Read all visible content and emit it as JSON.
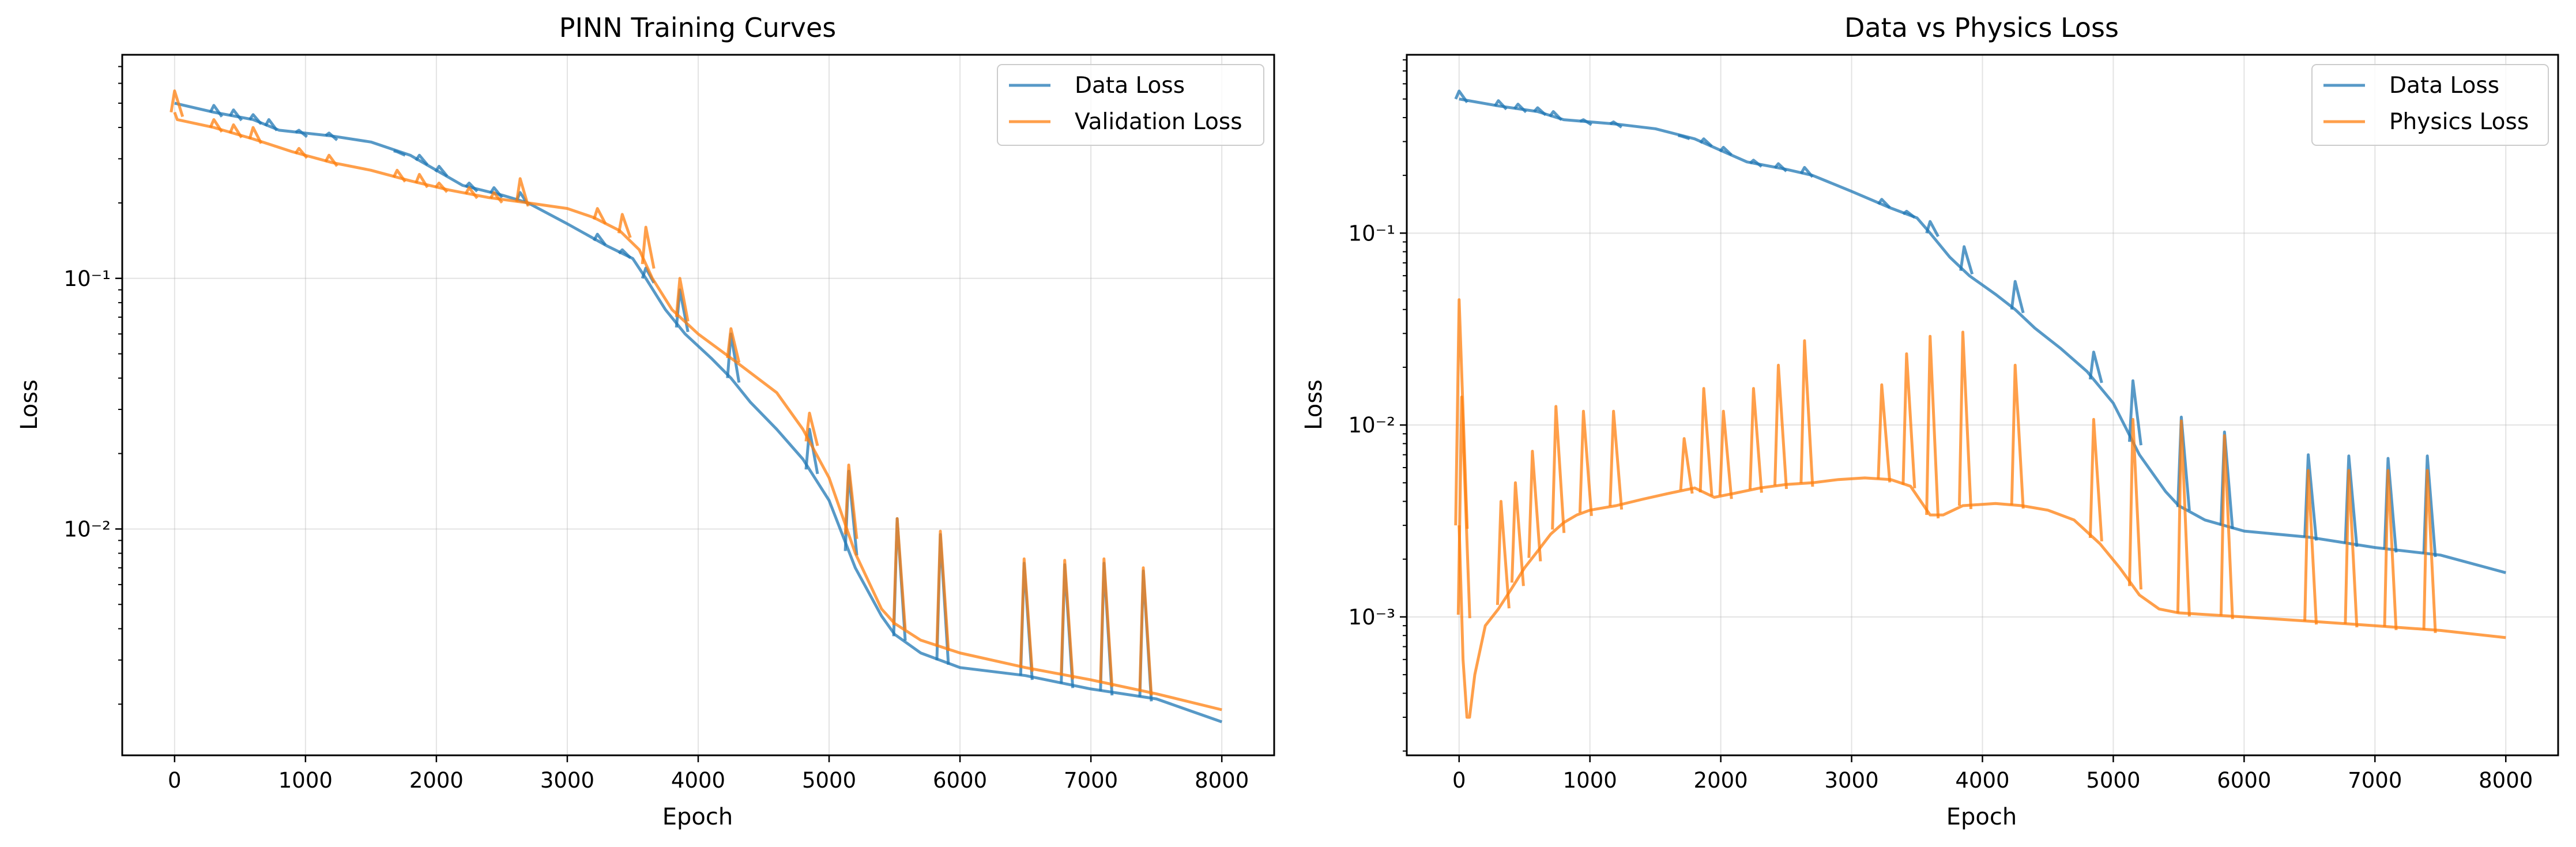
{
  "chart_data": [
    {
      "type": "line",
      "title": "PINN Training Curves",
      "xlabel": "Epoch",
      "ylabel": "Loss",
      "yscale": "log",
      "xlim": [
        -400,
        8400
      ],
      "ylim": [
        0.00125,
        0.78
      ],
      "grid": true,
      "legend_position": "upper-right",
      "x_ticks": [
        0,
        1000,
        2000,
        3000,
        4000,
        5000,
        6000,
        7000,
        8000
      ],
      "x_tick_labels": [
        "0",
        "1000",
        "2000",
        "3000",
        "4000",
        "5000",
        "6000",
        "7000",
        "8000"
      ],
      "y_ticks": [
        0.1,
        0.01
      ],
      "y_tick_labels": [
        "10⁻¹",
        "10⁻²"
      ],
      "series": [
        {
          "name": "Data Loss",
          "color": "#1f77b4",
          "points": [
            [
              0,
              0.5
            ],
            [
              300,
              0.46
            ],
            [
              600,
              0.43
            ],
            [
              800,
              0.39
            ],
            [
              1200,
              0.37
            ],
            [
              1500,
              0.35
            ],
            [
              1800,
              0.31
            ],
            [
              2000,
              0.27
            ],
            [
              2200,
              0.235
            ],
            [
              2500,
              0.215
            ],
            [
              2700,
              0.2
            ],
            [
              3000,
              0.165
            ],
            [
              3300,
              0.135
            ],
            [
              3500,
              0.12
            ],
            [
              3600,
              0.1
            ],
            [
              3750,
              0.075
            ],
            [
              3900,
              0.06
            ],
            [
              4100,
              0.048
            ],
            [
              4250,
              0.04
            ],
            [
              4400,
              0.032
            ],
            [
              4600,
              0.025
            ],
            [
              4800,
              0.019
            ],
            [
              5000,
              0.013
            ],
            [
              5200,
              0.007
            ],
            [
              5400,
              0.0045
            ],
            [
              5500,
              0.0038
            ],
            [
              5700,
              0.0032
            ],
            [
              6000,
              0.0028
            ],
            [
              6500,
              0.0026
            ],
            [
              7000,
              0.0023
            ],
            [
              7500,
              0.0021
            ],
            [
              8000,
              0.0017
            ]
          ],
          "spikes": [
            [
              300,
              0.49
            ],
            [
              450,
              0.47
            ],
            [
              600,
              0.45
            ],
            [
              720,
              0.43
            ],
            [
              950,
              0.39
            ],
            [
              1180,
              0.38
            ],
            [
              1700,
              0.32
            ],
            [
              1870,
              0.31
            ],
            [
              2020,
              0.28
            ],
            [
              2250,
              0.24
            ],
            [
              2440,
              0.23
            ],
            [
              2640,
              0.22
            ],
            [
              3230,
              0.15
            ],
            [
              3420,
              0.13
            ],
            [
              3600,
              0.11
            ],
            [
              3860,
              0.09
            ],
            [
              4250,
              0.06
            ],
            [
              4850,
              0.025
            ],
            [
              5150,
              0.017
            ],
            [
              5520,
              0.011
            ],
            [
              5850,
              0.0095
            ],
            [
              6490,
              0.0073
            ],
            [
              6800,
              0.0072
            ],
            [
              7100,
              0.0073
            ],
            [
              7400,
              0.0068
            ]
          ]
        },
        {
          "name": "Validation Loss",
          "color": "#ff7f0e",
          "points": [
            [
              0,
              0.46
            ],
            [
              20,
              0.43
            ],
            [
              300,
              0.4
            ],
            [
              600,
              0.36
            ],
            [
              900,
              0.32
            ],
            [
              1200,
              0.29
            ],
            [
              1500,
              0.27
            ],
            [
              1800,
              0.245
            ],
            [
              2100,
              0.225
            ],
            [
              2400,
              0.21
            ],
            [
              2700,
              0.2
            ],
            [
              3000,
              0.19
            ],
            [
              3200,
              0.175
            ],
            [
              3400,
              0.155
            ],
            [
              3550,
              0.13
            ],
            [
              3650,
              0.1
            ],
            [
              3800,
              0.075
            ],
            [
              4000,
              0.06
            ],
            [
              4300,
              0.046
            ],
            [
              4600,
              0.035
            ],
            [
              4800,
              0.025
            ],
            [
              5000,
              0.016
            ],
            [
              5200,
              0.008
            ],
            [
              5400,
              0.0048
            ],
            [
              5500,
              0.0042
            ],
            [
              5700,
              0.0036
            ],
            [
              6000,
              0.0032
            ],
            [
              6500,
              0.0028
            ],
            [
              7000,
              0.0025
            ],
            [
              7500,
              0.0022
            ],
            [
              8000,
              0.0019
            ]
          ],
          "spikes": [
            [
              0,
              0.56
            ],
            [
              300,
              0.43
            ],
            [
              450,
              0.41
            ],
            [
              600,
              0.4
            ],
            [
              950,
              0.33
            ],
            [
              1180,
              0.31
            ],
            [
              1700,
              0.27
            ],
            [
              1870,
              0.26
            ],
            [
              2020,
              0.24
            ],
            [
              2250,
              0.23
            ],
            [
              2440,
              0.22
            ],
            [
              2640,
              0.25
            ],
            [
              3230,
              0.19
            ],
            [
              3420,
              0.18
            ],
            [
              3600,
              0.16
            ],
            [
              3860,
              0.1
            ],
            [
              4250,
              0.063
            ],
            [
              4850,
              0.029
            ],
            [
              5150,
              0.018
            ],
            [
              5520,
              0.011
            ],
            [
              5850,
              0.0098
            ],
            [
              6490,
              0.0076
            ],
            [
              6800,
              0.0075
            ],
            [
              7100,
              0.0076
            ],
            [
              7400,
              0.007
            ]
          ]
        }
      ]
    },
    {
      "type": "line",
      "title": "Data vs Physics Loss",
      "xlabel": "Epoch",
      "ylabel": "Loss",
      "yscale": "log",
      "xlim": [
        -400,
        8400
      ],
      "ylim": [
        0.00019,
        0.85
      ],
      "grid": true,
      "legend_position": "upper-right",
      "x_ticks": [
        0,
        1000,
        2000,
        3000,
        4000,
        5000,
        6000,
        7000,
        8000
      ],
      "x_tick_labels": [
        "0",
        "1000",
        "2000",
        "3000",
        "4000",
        "5000",
        "6000",
        "7000",
        "8000"
      ],
      "y_ticks": [
        0.1,
        0.01,
        0.001
      ],
      "y_tick_labels": [
        "10⁻¹",
        "10⁻²",
        "10⁻³"
      ],
      "series": [
        {
          "name": "Data Loss",
          "color": "#1f77b4",
          "points": [
            [
              0,
              0.5
            ],
            [
              300,
              0.46
            ],
            [
              600,
              0.43
            ],
            [
              800,
              0.39
            ],
            [
              1200,
              0.37
            ],
            [
              1500,
              0.35
            ],
            [
              1800,
              0.31
            ],
            [
              2000,
              0.27
            ],
            [
              2200,
              0.235
            ],
            [
              2500,
              0.215
            ],
            [
              2700,
              0.2
            ],
            [
              3000,
              0.165
            ],
            [
              3300,
              0.135
            ],
            [
              3500,
              0.12
            ],
            [
              3600,
              0.1
            ],
            [
              3750,
              0.075
            ],
            [
              3900,
              0.06
            ],
            [
              4100,
              0.048
            ],
            [
              4250,
              0.04
            ],
            [
              4400,
              0.032
            ],
            [
              4600,
              0.025
            ],
            [
              4800,
              0.019
            ],
            [
              5000,
              0.013
            ],
            [
              5200,
              0.007
            ],
            [
              5400,
              0.0045
            ],
            [
              5500,
              0.0038
            ],
            [
              5700,
              0.0032
            ],
            [
              6000,
              0.0028
            ],
            [
              6500,
              0.0026
            ],
            [
              7000,
              0.0023
            ],
            [
              7500,
              0.0021
            ],
            [
              8000,
              0.0017
            ]
          ],
          "spikes": [
            [
              0,
              0.55
            ],
            [
              300,
              0.49
            ],
            [
              450,
              0.47
            ],
            [
              600,
              0.45
            ],
            [
              720,
              0.43
            ],
            [
              950,
              0.39
            ],
            [
              1180,
              0.38
            ],
            [
              1700,
              0.32
            ],
            [
              1870,
              0.31
            ],
            [
              2020,
              0.28
            ],
            [
              2250,
              0.24
            ],
            [
              2440,
              0.23
            ],
            [
              2640,
              0.22
            ],
            [
              3230,
              0.15
            ],
            [
              3420,
              0.13
            ],
            [
              3600,
              0.115
            ],
            [
              3860,
              0.085
            ],
            [
              4250,
              0.056
            ],
            [
              4850,
              0.024
            ],
            [
              5150,
              0.017
            ],
            [
              5520,
              0.011
            ],
            [
              5850,
              0.0092
            ],
            [
              6490,
              0.007
            ],
            [
              6800,
              0.0069
            ],
            [
              7100,
              0.0067
            ],
            [
              7400,
              0.0069
            ]
          ]
        },
        {
          "name": "Physics Loss",
          "color": "#ff7f0e",
          "points": [
            [
              0,
              0.003
            ],
            [
              30,
              0.0006
            ],
            [
              60,
              0.0003
            ],
            [
              80,
              0.0003
            ],
            [
              120,
              0.0005
            ],
            [
              200,
              0.0009
            ],
            [
              300,
              0.0011
            ],
            [
              400,
              0.0014
            ],
            [
              500,
              0.0018
            ],
            [
              600,
              0.0022
            ],
            [
              700,
              0.0027
            ],
            [
              800,
              0.0031
            ],
            [
              900,
              0.0034
            ],
            [
              1000,
              0.0036
            ],
            [
              1200,
              0.0038
            ],
            [
              1400,
              0.0041
            ],
            [
              1600,
              0.0044
            ],
            [
              1800,
              0.0047
            ],
            [
              1950,
              0.0042
            ],
            [
              2100,
              0.0044
            ],
            [
              2300,
              0.0047
            ],
            [
              2500,
              0.0049
            ],
            [
              2700,
              0.005
            ],
            [
              2900,
              0.0052
            ],
            [
              3100,
              0.0053
            ],
            [
              3300,
              0.0052
            ],
            [
              3450,
              0.0048
            ],
            [
              3600,
              0.0034
            ],
            [
              3700,
              0.0034
            ],
            [
              3850,
              0.0038
            ],
            [
              4100,
              0.0039
            ],
            [
              4300,
              0.0038
            ],
            [
              4500,
              0.0036
            ],
            [
              4700,
              0.0032
            ],
            [
              4900,
              0.0024
            ],
            [
              5050,
              0.0018
            ],
            [
              5200,
              0.0013
            ],
            [
              5350,
              0.0011
            ],
            [
              5500,
              0.00105
            ],
            [
              6000,
              0.001
            ],
            [
              6500,
              0.00095
            ],
            [
              7000,
              0.0009
            ],
            [
              7500,
              0.00085
            ],
            [
              8000,
              0.00078
            ]
          ],
          "spikes": [
            [
              0,
              0.045
            ],
            [
              20,
              0.014
            ],
            [
              320,
              0.004
            ],
            [
              430,
              0.005
            ],
            [
              560,
              0.0073
            ],
            [
              740,
              0.0125
            ],
            [
              950,
              0.0118
            ],
            [
              1180,
              0.0118
            ],
            [
              1720,
              0.0085
            ],
            [
              1870,
              0.0155
            ],
            [
              2020,
              0.0118
            ],
            [
              2250,
              0.0155
            ],
            [
              2440,
              0.0205
            ],
            [
              2640,
              0.0275
            ],
            [
              3230,
              0.0162
            ],
            [
              3420,
              0.0235
            ],
            [
              3600,
              0.029
            ],
            [
              3850,
              0.0305
            ],
            [
              4250,
              0.0205
            ],
            [
              4850,
              0.0107
            ],
            [
              5150,
              0.0107
            ],
            [
              5520,
              0.0105
            ],
            [
              5850,
              0.0088
            ],
            [
              6490,
              0.0058
            ],
            [
              6800,
              0.0058
            ],
            [
              7100,
              0.0058
            ],
            [
              7400,
              0.0058
            ]
          ]
        }
      ]
    }
  ]
}
